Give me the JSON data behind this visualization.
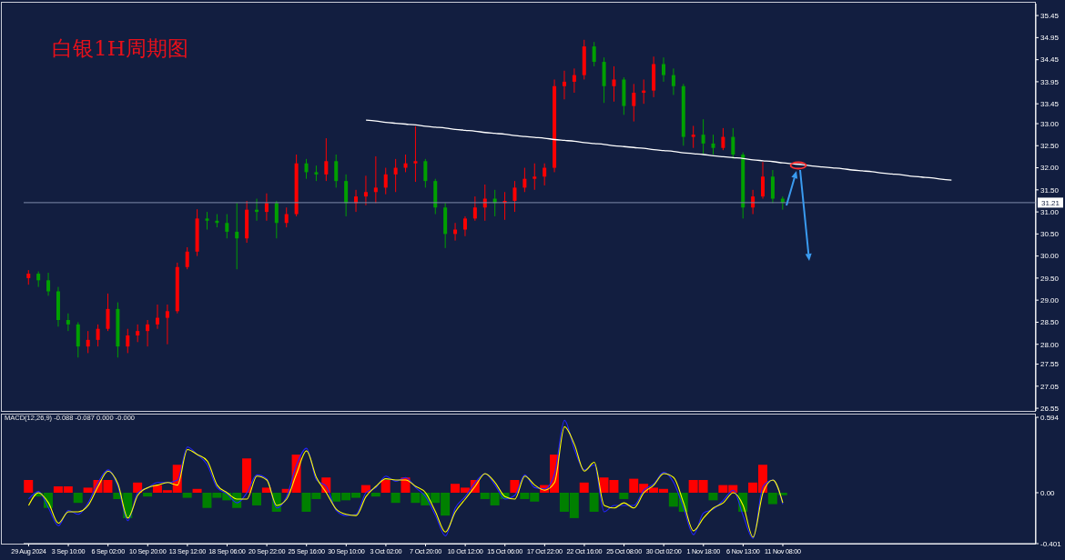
{
  "chart_data": [
    {
      "type": "candlestick",
      "title": "白银1H周期图",
      "categories": [
        null,
        null,
        null,
        null,
        null,
        null,
        null,
        null,
        null,
        null,
        null,
        null,
        null,
        null,
        null,
        null,
        null,
        null,
        null,
        null,
        null,
        null,
        null,
        null,
        null,
        null,
        null,
        null,
        null,
        null,
        null,
        null,
        null,
        null,
        null,
        null,
        null,
        null,
        null,
        null,
        null,
        null,
        null,
        null,
        null,
        null,
        null,
        null,
        null,
        null,
        null,
        null,
        null,
        null,
        null,
        null,
        null,
        null,
        null,
        null,
        null,
        null,
        null,
        null,
        null,
        null,
        null,
        null,
        null,
        null,
        null,
        null,
        null,
        null,
        null,
        null,
        null,
        null,
        null,
        null,
        null,
        null,
        null,
        null,
        null,
        null,
        null,
        null,
        null,
        null,
        null,
        null,
        null,
        null,
        null,
        null,
        null,
        null,
        null,
        null,
        null,
        null
      ],
      "ohlc": [
        [
          29.5,
          29.68,
          29.35,
          29.6
        ],
        [
          29.6,
          29.65,
          29.3,
          29.45
        ],
        [
          29.45,
          29.62,
          29.1,
          29.2
        ],
        [
          29.2,
          29.3,
          28.4,
          28.55
        ],
        [
          28.55,
          28.7,
          28.3,
          28.45
        ],
        [
          28.45,
          28.5,
          27.7,
          27.95
        ],
        [
          27.95,
          28.3,
          27.8,
          28.1
        ],
        [
          28.1,
          28.45,
          27.95,
          28.35
        ],
        [
          28.35,
          29.15,
          28.3,
          28.8
        ],
        [
          28.8,
          28.95,
          27.7,
          27.95
        ],
        [
          27.95,
          28.35,
          27.8,
          28.2
        ],
        [
          28.2,
          28.45,
          28.05,
          28.3
        ],
        [
          28.3,
          28.55,
          27.95,
          28.45
        ],
        [
          28.45,
          28.9,
          28.35,
          28.6
        ],
        [
          28.6,
          28.9,
          28.0,
          28.75
        ],
        [
          28.75,
          29.85,
          28.7,
          29.75
        ],
        [
          29.75,
          30.2,
          29.7,
          30.1
        ],
        [
          30.1,
          31.06,
          30.0,
          30.85
        ],
        [
          30.85,
          31.0,
          30.6,
          30.8
        ],
        [
          30.8,
          30.95,
          30.65,
          30.75
        ],
        [
          30.75,
          30.95,
          30.4,
          30.55
        ],
        [
          30.55,
          31.2,
          29.7,
          30.4
        ],
        [
          30.4,
          31.25,
          30.3,
          31.05
        ],
        [
          31.05,
          31.3,
          30.8,
          31.0
        ],
        [
          31.0,
          31.42,
          30.8,
          31.2
        ],
        [
          31.2,
          31.25,
          30.4,
          30.75
        ],
        [
          30.75,
          31.1,
          30.65,
          30.95
        ],
        [
          30.95,
          32.3,
          30.9,
          32.1
        ],
        [
          32.1,
          32.2,
          31.75,
          31.9
        ],
        [
          31.9,
          32.05,
          31.7,
          31.85
        ],
        [
          31.85,
          32.67,
          31.7,
          32.15
        ],
        [
          32.15,
          32.3,
          31.55,
          31.7
        ],
        [
          31.7,
          31.85,
          30.9,
          31.2
        ],
        [
          31.2,
          31.5,
          31.0,
          31.35
        ],
        [
          31.35,
          31.82,
          31.15,
          31.45
        ],
        [
          31.45,
          32.26,
          31.2,
          31.55
        ],
        [
          31.55,
          32.0,
          31.4,
          31.85
        ],
        [
          31.85,
          32.2,
          31.45,
          32.0
        ],
        [
          32.0,
          32.3,
          31.9,
          32.1
        ],
        [
          32.1,
          32.94,
          31.68,
          32.15
        ],
        [
          32.15,
          32.2,
          31.55,
          31.7
        ],
        [
          31.7,
          31.75,
          30.95,
          31.1
        ],
        [
          31.1,
          31.2,
          30.18,
          30.5
        ],
        [
          30.5,
          30.75,
          30.35,
          30.6
        ],
        [
          30.6,
          30.9,
          30.45,
          30.85
        ],
        [
          30.85,
          31.35,
          30.8,
          31.1
        ],
        [
          31.1,
          31.62,
          30.8,
          31.3
        ],
        [
          31.3,
          31.5,
          30.9,
          31.2
        ],
        [
          31.2,
          31.45,
          30.82,
          31.25
        ],
        [
          31.25,
          31.7,
          31.0,
          31.55
        ],
        [
          31.55,
          32.0,
          31.45,
          31.75
        ],
        [
          31.75,
          32.1,
          31.5,
          31.8
        ],
        [
          31.8,
          32.1,
          31.6,
          32.0
        ],
        [
          32.0,
          34.0,
          31.9,
          33.85
        ],
        [
          33.85,
          34.2,
          33.55,
          33.95
        ],
        [
          33.95,
          34.25,
          33.7,
          34.1
        ],
        [
          34.1,
          34.9,
          34.0,
          34.75
        ],
        [
          34.75,
          34.85,
          34.3,
          34.4
        ],
        [
          34.4,
          34.5,
          33.47,
          33.85
        ],
        [
          33.85,
          34.3,
          33.5,
          34.0
        ],
        [
          34.0,
          34.05,
          33.2,
          33.4
        ],
        [
          33.4,
          33.9,
          33.05,
          33.7
        ],
        [
          33.7,
          34.0,
          33.45,
          33.75
        ],
        [
          33.75,
          34.52,
          33.6,
          34.35
        ],
        [
          34.35,
          34.5,
          33.95,
          34.1
        ],
        [
          34.1,
          34.25,
          33.65,
          33.85
        ],
        [
          33.85,
          33.9,
          32.5,
          32.7
        ],
        [
          32.7,
          32.95,
          32.45,
          32.75
        ],
        [
          32.75,
          33.1,
          32.3,
          32.55
        ],
        [
          32.55,
          32.75,
          32.3,
          32.45
        ],
        [
          32.45,
          32.9,
          32.4,
          32.7
        ],
        [
          32.7,
          32.9,
          32.2,
          32.3
        ],
        [
          32.3,
          32.35,
          30.85,
          31.1
        ],
        [
          31.1,
          31.5,
          30.95,
          31.35
        ],
        [
          31.35,
          32.13,
          31.3,
          31.8
        ],
        [
          31.8,
          31.95,
          31.2,
          31.3
        ],
        [
          31.3,
          31.35,
          31.05,
          31.21
        ],
        null,
        null,
        null,
        null,
        null,
        null,
        null,
        null,
        null,
        null,
        null,
        null,
        null,
        null,
        null,
        null,
        null,
        null,
        null,
        null,
        null,
        null,
        null,
        null,
        null
      ],
      "colors": [
        "#ff0000",
        "#00a000",
        "#00a000",
        "#00a000",
        "#00a000",
        "#00a000",
        "#ff0000",
        "#ff0000",
        "#ff0000",
        "#00a000",
        "#ff0000",
        "#ff0000",
        "#ff0000",
        "#ff0000",
        "#ff0000",
        "#ff0000",
        "#ff0000",
        "#ff0000",
        "#00a000",
        "#00a000",
        "#00a000",
        "#00a000",
        "#ff0000",
        "#00a000",
        "#ff0000",
        "#00a000",
        "#ff0000",
        "#ff0000",
        "#00a000",
        "#00a000",
        "#ff0000",
        "#00a000",
        "#00a000",
        "#ff0000",
        "#ff0000",
        "#ff0000",
        "#ff0000",
        "#ff0000",
        "#ff0000",
        "#ff0000",
        "#00a000",
        "#00a000",
        "#00a000",
        "#ff0000",
        "#ff0000",
        "#ff0000",
        "#ff0000",
        "#00a000",
        "#ff0000",
        "#ff0000",
        "#ff0000",
        "#ff0000",
        "#ff0000",
        "#ff0000",
        "#ff0000",
        "#ff0000",
        "#ff0000",
        "#00a000",
        "#00a000",
        "#ff0000",
        "#00a000",
        "#ff0000",
        "#ff0000",
        "#ff0000",
        "#00a000",
        "#00a000",
        "#00a000",
        "#ff0000",
        "#00a000",
        "#00a000",
        "#ff0000",
        "#00a000",
        "#00a000",
        "#ff0000",
        "#ff0000",
        "#00a000",
        "#00a000",
        null,
        null,
        null,
        null,
        null,
        null,
        null,
        null,
        null,
        null,
        null,
        null,
        null,
        null,
        null,
        null,
        null,
        null,
        null,
        null,
        null,
        null,
        null,
        null,
        null
      ],
      "series": [
        {
          "type": "line",
          "color": "#ffffff",
          "values": [
            null,
            null,
            null,
            null,
            null,
            null,
            null,
            null,
            null,
            null,
            null,
            null,
            null,
            null,
            null,
            null,
            null,
            null,
            null,
            null,
            null,
            null,
            null,
            null,
            null,
            null,
            null,
            null,
            null,
            null,
            null,
            null,
            null,
            null,
            33.08,
            33.06,
            33.03,
            33.01,
            32.99,
            32.97,
            32.94,
            32.92,
            32.9,
            32.87,
            32.85,
            32.83,
            32.8,
            32.78,
            32.76,
            32.73,
            32.71,
            32.69,
            32.67,
            32.64,
            32.62,
            32.6,
            32.57,
            32.55,
            32.53,
            32.5,
            32.48,
            32.46,
            32.44,
            32.41,
            32.39,
            32.37,
            32.34,
            32.32,
            32.3,
            32.27,
            32.25,
            32.23,
            32.21,
            32.18,
            32.16,
            32.14,
            32.11,
            32.09,
            32.07,
            32.04,
            32.02,
            32.0,
            31.98,
            31.95,
            31.93,
            31.91,
            31.88,
            31.86,
            31.84,
            31.81,
            31.79,
            31.77,
            31.74,
            31.72,
            null,
            null,
            null,
            null,
            null,
            null,
            null,
            null
          ]
        }
      ],
      "ylim": [
        26.49,
        35.72
      ],
      "yticks": [
        35.45,
        34.95,
        34.45,
        33.95,
        33.45,
        {
          "value": 33,
          "label": "33.00"
        },
        {
          "value": 32.5,
          "label": "32.50"
        },
        {
          "value": 32,
          "label": "32.00"
        },
        {
          "value": 31.5,
          "label": "31.50"
        },
        {
          "value": 31,
          "label": "31.00"
        },
        {
          "value": 30.5,
          "label": "30.50"
        },
        {
          "value": 30,
          "label": "30.00"
        },
        {
          "value": 29.5,
          "label": "29.50"
        },
        {
          "value": 29,
          "label": "29.00"
        },
        {
          "value": 28.5,
          "label": "28.50"
        },
        {
          "value": 28,
          "label": "28.00"
        },
        27.55,
        27.05,
        26.55
      ],
      "tick_labels": "y",
      "ref_lines": [
        {
          "axis": "y",
          "value": 31.21,
          "label": "31.21",
          "color": "#7f8cab"
        }
      ]
    },
    {
      "type": "bar",
      "title": "MACD(12,26,9) -0.088 -0.087 0.000 -0.000",
      "categories": [
        "29 Aug 2024",
        null,
        null,
        null,
        "3 Sep 10:00",
        null,
        null,
        null,
        "6 Sep 02:00",
        null,
        null,
        null,
        "10 Sep 20:00",
        null,
        null,
        null,
        "13 Sep 12:00",
        null,
        null,
        null,
        "18 Sep 06:00",
        null,
        null,
        null,
        "20 Sep 22:00",
        null,
        null,
        null,
        "25 Sep 16:00",
        null,
        null,
        null,
        "30 Sep 10:00",
        null,
        null,
        null,
        "3 Oct 02:00",
        null,
        null,
        null,
        "7 Oct 20:00",
        null,
        null,
        null,
        "10 Oct 12:00",
        null,
        null,
        null,
        "15 Oct 06:00",
        null,
        null,
        null,
        "17 Oct 22:00",
        null,
        null,
        null,
        "22 Oct 16:00",
        null,
        null,
        null,
        "25 Oct 08:00",
        null,
        null,
        null,
        "30 Oct 02:00",
        null,
        null,
        null,
        "1 Nov 18:00",
        null,
        null,
        null,
        "6 Nov 13:00",
        null,
        null,
        null,
        "11 Nov 08:00",
        null,
        null,
        null,
        null,
        null,
        null,
        null,
        null,
        null,
        null,
        null,
        null,
        null,
        null,
        null,
        null,
        null,
        null,
        null,
        null,
        null,
        null,
        null,
        null,
        null
      ],
      "series": [
        {
          "colors": [
            "#ff0000",
            "#008000",
            "#008000",
            "#ff0000",
            "#ff0000",
            "#008000",
            "#ff0000",
            "#ff0000",
            "#ff0000",
            "#008000",
            "#008000",
            "#ff0000",
            "#008000",
            "#ff0000",
            "#ff0000",
            "#ff0000",
            "#008000",
            "#ff0000",
            "#008000",
            "#008000",
            "#008000",
            "#008000",
            "#ff0000",
            "#008000",
            "#ff0000",
            "#008000",
            "#ff0000",
            "#ff0000",
            "#008000",
            "#008000",
            "#ff0000",
            "#008000",
            "#008000",
            "#008000",
            "#ff0000",
            "#008000",
            "#ff0000",
            "#008000",
            "#ff0000",
            "#008000",
            "#008000",
            "#008000",
            "#008000",
            "#ff0000",
            "#ff0000",
            "#ff0000",
            "#008000",
            "#008000",
            "#008000",
            "#ff0000",
            "#008000",
            "#008000",
            "#ff0000",
            "#ff0000",
            "#008000",
            "#008000",
            "#ff0000",
            "#008000",
            "#ff0000",
            "#ff0000",
            "#008000",
            "#ff0000",
            "#ff0000",
            "#ff0000",
            "#ff0000",
            "#008000",
            "#008000",
            "#ff0000",
            "#ff0000",
            "#008000",
            "#ff0000",
            "#ff0000",
            "#008000",
            "#ff0000",
            "#ff0000",
            "#008000",
            "#008000",
            null,
            null,
            null,
            null,
            null,
            null,
            null,
            null,
            null,
            null,
            null,
            null,
            null,
            null,
            null,
            null,
            null,
            null,
            null,
            null,
            null,
            null,
            null,
            null,
            null
          ],
          "values": [
            0.1,
            -0.03,
            -0.12,
            0.05,
            0.05,
            -0.08,
            0.04,
            0.1,
            0.1,
            -0.05,
            -0.2,
            0.08,
            -0.03,
            0.06,
            0.02,
            0.22,
            -0.04,
            0.03,
            -0.12,
            -0.04,
            -0.06,
            -0.12,
            0.27,
            -0.1,
            0.04,
            -0.15,
            0.03,
            0.3,
            -0.15,
            -0.05,
            0.12,
            -0.07,
            -0.06,
            -0.04,
            0.06,
            -0.03,
            0.1,
            -0.08,
            0.12,
            -0.08,
            -0.1,
            -0.08,
            -0.18,
            0.07,
            0.04,
            0.1,
            -0.05,
            -0.1,
            -0.05,
            0.1,
            -0.05,
            -0.07,
            0.06,
            0.3,
            -0.15,
            -0.2,
            0.08,
            -0.15,
            0.12,
            0.1,
            -0.05,
            0.11,
            0.07,
            0.04,
            0.03,
            -0.11,
            -0.15,
            0.1,
            0.1,
            -0.06,
            0.06,
            0.06,
            -0.15,
            0.08,
            0.22,
            -0.09,
            -0.02,
            null,
            null,
            null,
            null,
            null,
            null,
            null,
            null,
            null,
            null,
            null,
            null,
            null,
            null,
            null,
            null,
            null,
            null,
            null,
            null,
            null,
            null,
            null,
            null,
            null
          ]
        },
        {
          "type": "line",
          "color": "#2424ff",
          "values": [
            -0.05,
            0.01,
            -0.12,
            -0.26,
            -0.14,
            -0.17,
            -0.08,
            0.08,
            0.18,
            0.05,
            -0.22,
            0.0,
            0.04,
            0.08,
            0.08,
            0.1,
            0.36,
            0.3,
            0.22,
            0.04,
            -0.01,
            -0.08,
            0.0,
            0.14,
            0.11,
            -0.12,
            -0.03,
            0.22,
            0.35,
            0.1,
            0.05,
            -0.14,
            -0.18,
            -0.17,
            0.0,
            0.04,
            0.13,
            0.09,
            0.12,
            0.04,
            -0.03,
            -0.18,
            -0.34,
            -0.12,
            -0.03,
            0.08,
            0.15,
            0.06,
            -0.05,
            -0.02,
            0.14,
            0.04,
            0.03,
            0.15,
            0.57,
            0.34,
            0.18,
            0.22,
            -0.15,
            -0.1,
            -0.1,
            -0.1,
            0.02,
            0.07,
            0.16,
            0.08,
            -0.12,
            -0.33,
            -0.16,
            -0.13,
            -0.06,
            0.02,
            -0.18,
            -0.36,
            0.05,
            0.1,
            -0.09,
            null,
            null,
            null,
            null,
            null,
            null,
            null,
            null,
            null,
            null,
            null,
            null,
            null,
            null,
            null,
            null,
            null,
            null,
            null,
            null,
            null,
            null,
            null,
            null,
            null
          ]
        },
        {
          "type": "line",
          "color": "#ffff00",
          "values": [
            -0.1,
            0.0,
            -0.08,
            -0.24,
            -0.15,
            -0.15,
            -0.1,
            0.05,
            0.17,
            0.07,
            -0.2,
            -0.02,
            0.04,
            0.06,
            0.08,
            0.06,
            0.34,
            0.3,
            0.25,
            0.06,
            0.0,
            -0.05,
            -0.05,
            0.13,
            0.1,
            -0.1,
            -0.05,
            0.15,
            0.33,
            0.12,
            0.0,
            -0.13,
            -0.17,
            -0.18,
            -0.03,
            0.05,
            0.11,
            0.1,
            0.1,
            0.05,
            0.0,
            -0.15,
            -0.31,
            -0.15,
            -0.05,
            0.05,
            0.15,
            0.08,
            -0.03,
            -0.05,
            0.13,
            0.06,
            0.02,
            0.08,
            0.52,
            0.38,
            0.17,
            0.24,
            -0.1,
            -0.12,
            -0.08,
            -0.12,
            0.0,
            0.06,
            0.15,
            0.12,
            -0.08,
            -0.3,
            -0.2,
            -0.12,
            -0.08,
            0.0,
            -0.1,
            -0.35,
            0.0,
            0.1,
            -0.08,
            null,
            null,
            null,
            null,
            null,
            null,
            null,
            null,
            null,
            null,
            null,
            null,
            null,
            null,
            null,
            null,
            null,
            null,
            null,
            null,
            null,
            null,
            null,
            null,
            null
          ]
        }
      ],
      "ylim": [
        -0.401,
        0.594
      ],
      "yticks": [
        0.594,
        {
          "value": 0,
          "label": "0.00"
        },
        -0.401
      ]
    }
  ]
}
